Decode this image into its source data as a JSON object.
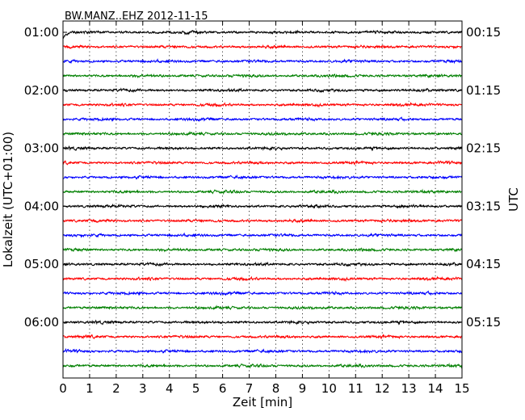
{
  "chart_data": {
    "type": "line",
    "title": "BW.MANZ..EHZ 2012-11-15",
    "xlabel": "Zeit  [min]",
    "ylabel_left": "Lokalzeit (UTC+01:00)",
    "ylabel_right": "UTC",
    "xlim": [
      0,
      15
    ],
    "x_ticks": [
      "0",
      "1",
      "2",
      "3",
      "4",
      "5",
      "6",
      "7",
      "8",
      "9",
      "10",
      "11",
      "12",
      "13",
      "14",
      "15"
    ],
    "grid": "vertical dotted",
    "trace_count": 24,
    "trace_colors": [
      "#000000",
      "#ff0000",
      "#0000ff",
      "#008000"
    ],
    "left_ticks": [
      {
        "trace": 0,
        "label": "01:00"
      },
      {
        "trace": 4,
        "label": "02:00"
      },
      {
        "trace": 8,
        "label": "03:00"
      },
      {
        "trace": 12,
        "label": "04:00"
      },
      {
        "trace": 16,
        "label": "05:00"
      },
      {
        "trace": 20,
        "label": "06:00"
      }
    ],
    "right_ticks": [
      {
        "trace": 0,
        "label": "00:15"
      },
      {
        "trace": 4,
        "label": "01:15"
      },
      {
        "trace": 8,
        "label": "02:15"
      },
      {
        "trace": 12,
        "label": "03:15"
      },
      {
        "trace": 16,
        "label": "04:15"
      },
      {
        "trace": 20,
        "label": "05:15"
      }
    ]
  }
}
